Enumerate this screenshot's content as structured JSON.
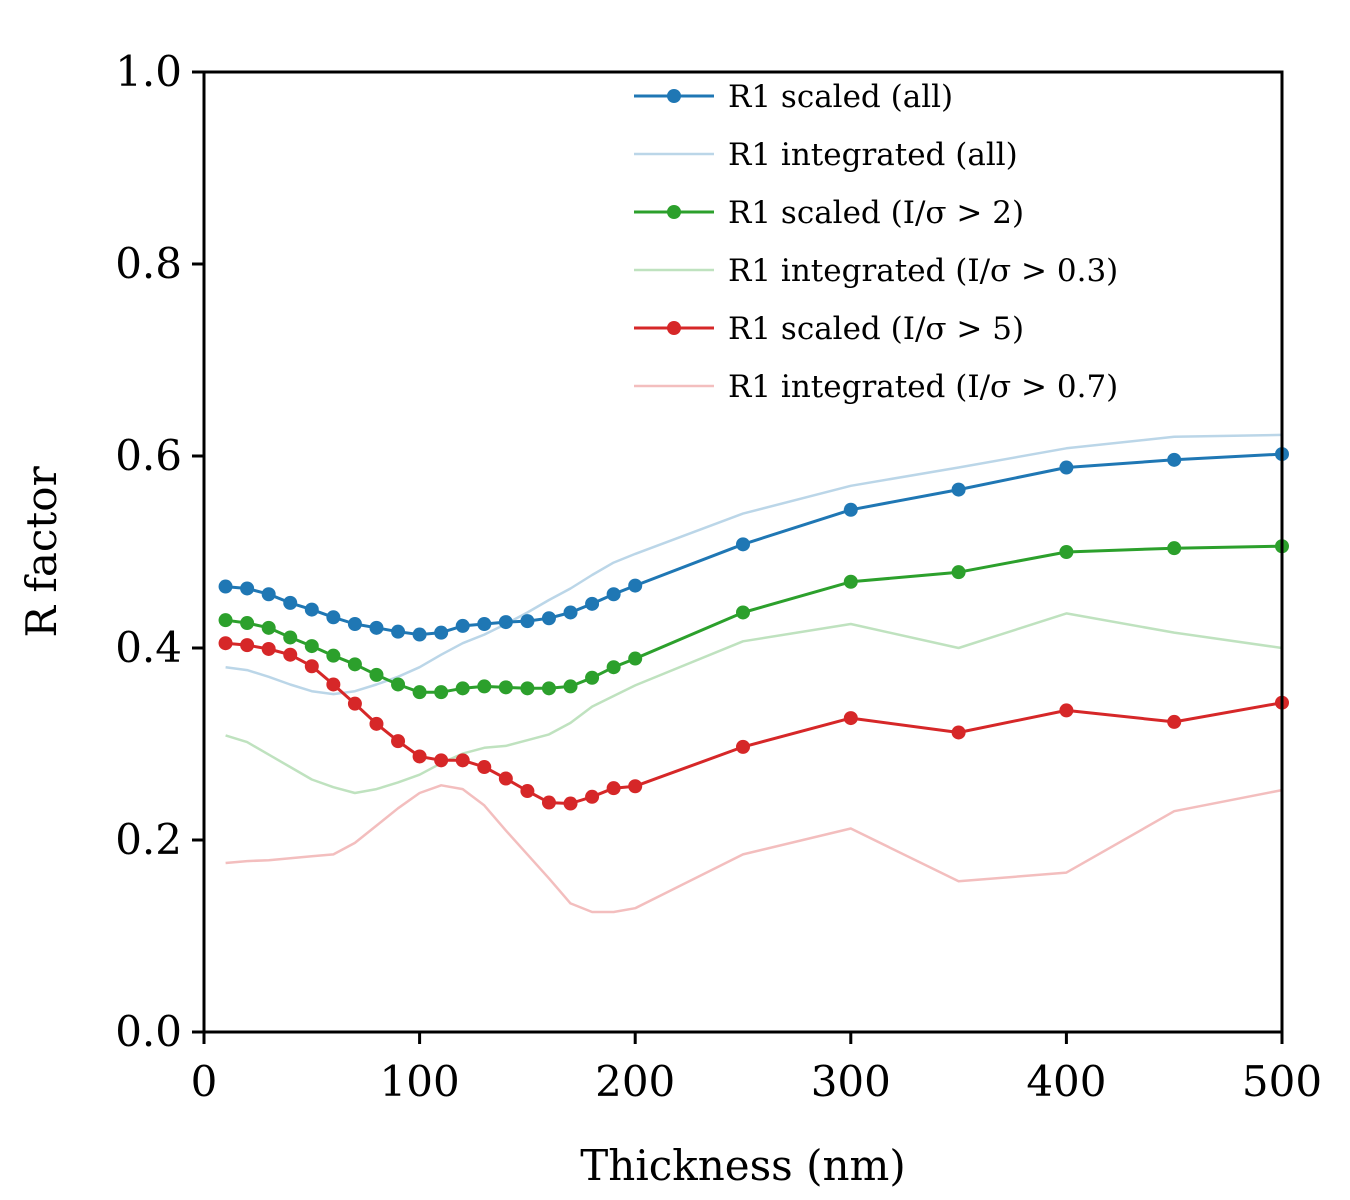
{
  "chart_data": {
    "type": "line",
    "title": "",
    "xlabel": "Thickness (nm)",
    "ylabel": "R factor",
    "xlim": [
      0,
      500
    ],
    "ylim": [
      0.0,
      1.0
    ],
    "xticks": [
      "0",
      "100",
      "200",
      "300",
      "400",
      "500"
    ],
    "yticks": [
      "0.0",
      "0.2",
      "0.4",
      "0.6",
      "0.8",
      "1.0"
    ],
    "grid": false,
    "legend_position": "top-right",
    "series": [
      {
        "name": "R1 scaled (all)",
        "color": "#1f77b4",
        "alpha": 1.0,
        "markers": true,
        "x": [
          10,
          20,
          30,
          40,
          50,
          60,
          70,
          80,
          90,
          100,
          110,
          120,
          130,
          140,
          150,
          160,
          170,
          180,
          190,
          200,
          250,
          300,
          350,
          400,
          450,
          500
        ],
        "y": [
          0.464,
          0.462,
          0.456,
          0.447,
          0.44,
          0.432,
          0.425,
          0.421,
          0.417,
          0.414,
          0.416,
          0.423,
          0.425,
          0.427,
          0.428,
          0.431,
          0.437,
          0.446,
          0.456,
          0.465,
          0.508,
          0.544,
          0.565,
          0.588,
          0.596,
          0.602
        ]
      },
      {
        "name": "R1 integrated (all)",
        "color": "#1f77b4",
        "alpha": 0.3,
        "markers": false,
        "x": [
          10,
          20,
          30,
          40,
          50,
          60,
          70,
          80,
          90,
          100,
          110,
          120,
          130,
          140,
          150,
          160,
          170,
          180,
          190,
          200,
          250,
          300,
          350,
          400,
          450,
          500
        ],
        "y": [
          0.38,
          0.377,
          0.37,
          0.362,
          0.355,
          0.352,
          0.355,
          0.362,
          0.37,
          0.38,
          0.393,
          0.405,
          0.414,
          0.425,
          0.437,
          0.45,
          0.462,
          0.476,
          0.489,
          0.498,
          0.54,
          0.569,
          0.588,
          0.608,
          0.62,
          0.622
        ]
      },
      {
        "name": "R1 scaled (I/σ > 2)",
        "color": "#2ca02c",
        "alpha": 1.0,
        "markers": true,
        "x": [
          10,
          20,
          30,
          40,
          50,
          60,
          70,
          80,
          90,
          100,
          110,
          120,
          130,
          140,
          150,
          160,
          170,
          180,
          190,
          200,
          250,
          300,
          350,
          400,
          450,
          500
        ],
        "y": [
          0.429,
          0.426,
          0.421,
          0.411,
          0.402,
          0.392,
          0.383,
          0.372,
          0.362,
          0.354,
          0.354,
          0.358,
          0.36,
          0.359,
          0.358,
          0.358,
          0.36,
          0.369,
          0.38,
          0.389,
          0.437,
          0.469,
          0.479,
          0.5,
          0.504,
          0.506
        ]
      },
      {
        "name": "R1 integrated (I/σ > 0.3)",
        "color": "#2ca02c",
        "alpha": 0.3,
        "markers": false,
        "x": [
          10,
          20,
          30,
          40,
          50,
          60,
          70,
          80,
          90,
          100,
          110,
          120,
          130,
          140,
          150,
          160,
          170,
          180,
          190,
          200,
          250,
          300,
          350,
          400,
          450,
          500
        ],
        "y": [
          0.309,
          0.302,
          0.289,
          0.276,
          0.263,
          0.255,
          0.249,
          0.253,
          0.26,
          0.268,
          0.28,
          0.29,
          0.296,
          0.298,
          0.304,
          0.31,
          0.322,
          0.339,
          0.35,
          0.361,
          0.407,
          0.425,
          0.4,
          0.436,
          0.416,
          0.4
        ]
      },
      {
        "name": "R1 scaled (I/σ > 5)",
        "color": "#d62728",
        "alpha": 1.0,
        "markers": true,
        "x": [
          10,
          20,
          30,
          40,
          50,
          60,
          70,
          80,
          90,
          100,
          110,
          120,
          130,
          140,
          150,
          160,
          170,
          180,
          190,
          200,
          250,
          300,
          350,
          400,
          450,
          500
        ],
        "y": [
          0.405,
          0.403,
          0.399,
          0.393,
          0.381,
          0.362,
          0.342,
          0.321,
          0.303,
          0.287,
          0.283,
          0.283,
          0.276,
          0.264,
          0.251,
          0.239,
          0.238,
          0.245,
          0.254,
          0.256,
          0.297,
          0.327,
          0.312,
          0.335,
          0.323,
          0.343
        ]
      },
      {
        "name": "R1 integrated (I/σ > 0.7)",
        "color": "#d62728",
        "alpha": 0.3,
        "markers": false,
        "x": [
          10,
          20,
          30,
          40,
          50,
          60,
          70,
          80,
          90,
          100,
          110,
          120,
          130,
          140,
          150,
          160,
          170,
          180,
          190,
          200,
          250,
          300,
          350,
          400,
          450,
          500
        ],
        "y": [
          0.176,
          0.178,
          0.179,
          0.181,
          0.183,
          0.185,
          0.197,
          0.215,
          0.233,
          0.249,
          0.257,
          0.253,
          0.236,
          0.21,
          0.185,
          0.16,
          0.134,
          0.125,
          0.125,
          0.129,
          0.185,
          0.212,
          0.157,
          0.166,
          0.23,
          0.252
        ]
      }
    ]
  }
}
